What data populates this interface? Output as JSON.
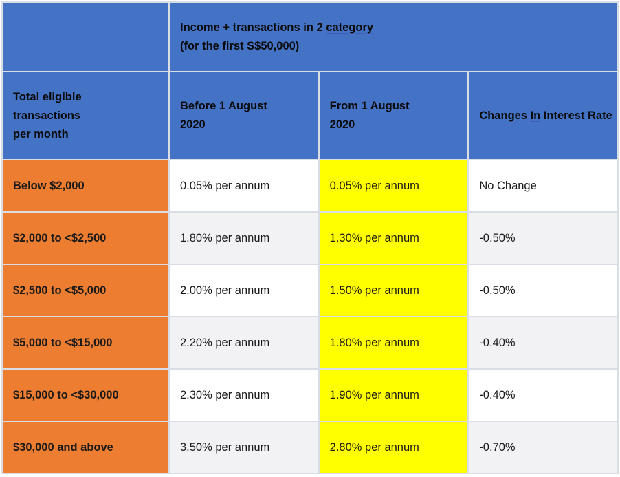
{
  "table": {
    "top_header": {
      "line1_pre": "Income + transactions in 2 ",
      "line1_underlined": "category",
      "line2": "(for the first S$50,000)"
    },
    "col_headers": {
      "tier_line1": "Total eligible",
      "tier_line2": "transactions",
      "tier_line3": "per month",
      "before_line1": "Before 1 August",
      "before_line2": "2020",
      "from_line1": "From 1 August",
      "from_line2": "2020",
      "changes_pre": "Changes ",
      "changes_underlined": "In",
      "changes_post": " Interest Rate"
    },
    "rows": [
      {
        "tier": "Below $2,000",
        "before": "0.05% per annum",
        "from": "0.05% per annum",
        "change": "No Change"
      },
      {
        "tier": "$2,000 to <$2,500",
        "before": "1.80% per annum",
        "from": "1.30% per annum",
        "change": "-0.50%"
      },
      {
        "tier": "$2,500 to <$5,000",
        "before": "2.00% per annum",
        "from": "1.50% per annum",
        "change": "-0.50%"
      },
      {
        "tier": "$5,000 to <$15,000",
        "before": "2.20% per annum",
        "from": "1.80% per annum",
        "change": "-0.40%"
      },
      {
        "tier": "$15,000 to <$30,000",
        "before": "2.30% per annum",
        "from": "1.90% per annum",
        "change": "-0.40%"
      },
      {
        "tier": "$30,000 and above",
        "before": "3.50% per annum",
        "from": "2.80% per annum",
        "change": "-0.70%"
      }
    ],
    "colors": {
      "header_blue": "#4472c4",
      "tier_orange": "#ed7d31",
      "highlight_yellow": "#ffff00",
      "row_grey": "#f2f2f4"
    }
  }
}
